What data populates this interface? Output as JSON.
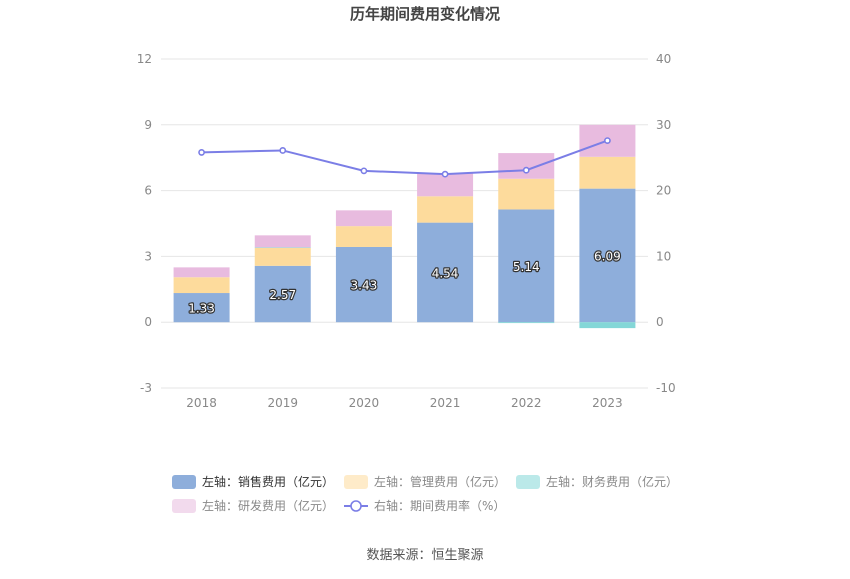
{
  "chart_data": {
    "type": "bar",
    "title": "历年期间费用变化情况",
    "source": "数据来源：恒生聚源",
    "categories": [
      "2018",
      "2019",
      "2020",
      "2021",
      "2022",
      "2023"
    ],
    "left_axis": {
      "min": -3,
      "max": 12,
      "ticks": [
        "-3",
        "0",
        "3",
        "6",
        "9",
        "12"
      ]
    },
    "right_axis": {
      "min": -10,
      "max": 40,
      "ticks": [
        "-10",
        "0",
        "10",
        "20",
        "30",
        "40"
      ]
    },
    "grid": true,
    "legend_position": "bottom",
    "series": [
      {
        "name": "左轴：销售费用（亿元）",
        "axis": "left",
        "kind": "bar",
        "color": "#8eaedb",
        "values": [
          1.33,
          2.57,
          3.43,
          4.54,
          5.14,
          6.09
        ],
        "labels": [
          "1.33",
          "2.57",
          "3.43",
          "4.54",
          "5.14",
          "6.09"
        ]
      },
      {
        "name": "左轴：管理费用（亿元）",
        "axis": "left",
        "kind": "bar",
        "color": "#fddb9c",
        "values": [
          0.72,
          0.82,
          0.95,
          1.2,
          1.4,
          1.45
        ]
      },
      {
        "name": "左轴：财务费用（亿元）",
        "axis": "left",
        "kind": "bar",
        "color": "#84d7d7",
        "values": [
          0.0,
          0.02,
          0.0,
          0.0,
          -0.04,
          -0.27
        ]
      },
      {
        "name": "左轴：研发费用（亿元）",
        "axis": "left",
        "kind": "bar",
        "color": "#e8bbdf",
        "values": [
          0.45,
          0.55,
          0.72,
          1.06,
          1.17,
          1.46
        ]
      },
      {
        "name": "右轴：期间费用率（%）",
        "axis": "right",
        "kind": "line",
        "color": "#7b7ee6",
        "values": [
          25.8,
          26.1,
          23.0,
          22.5,
          23.1,
          27.6
        ]
      }
    ]
  }
}
